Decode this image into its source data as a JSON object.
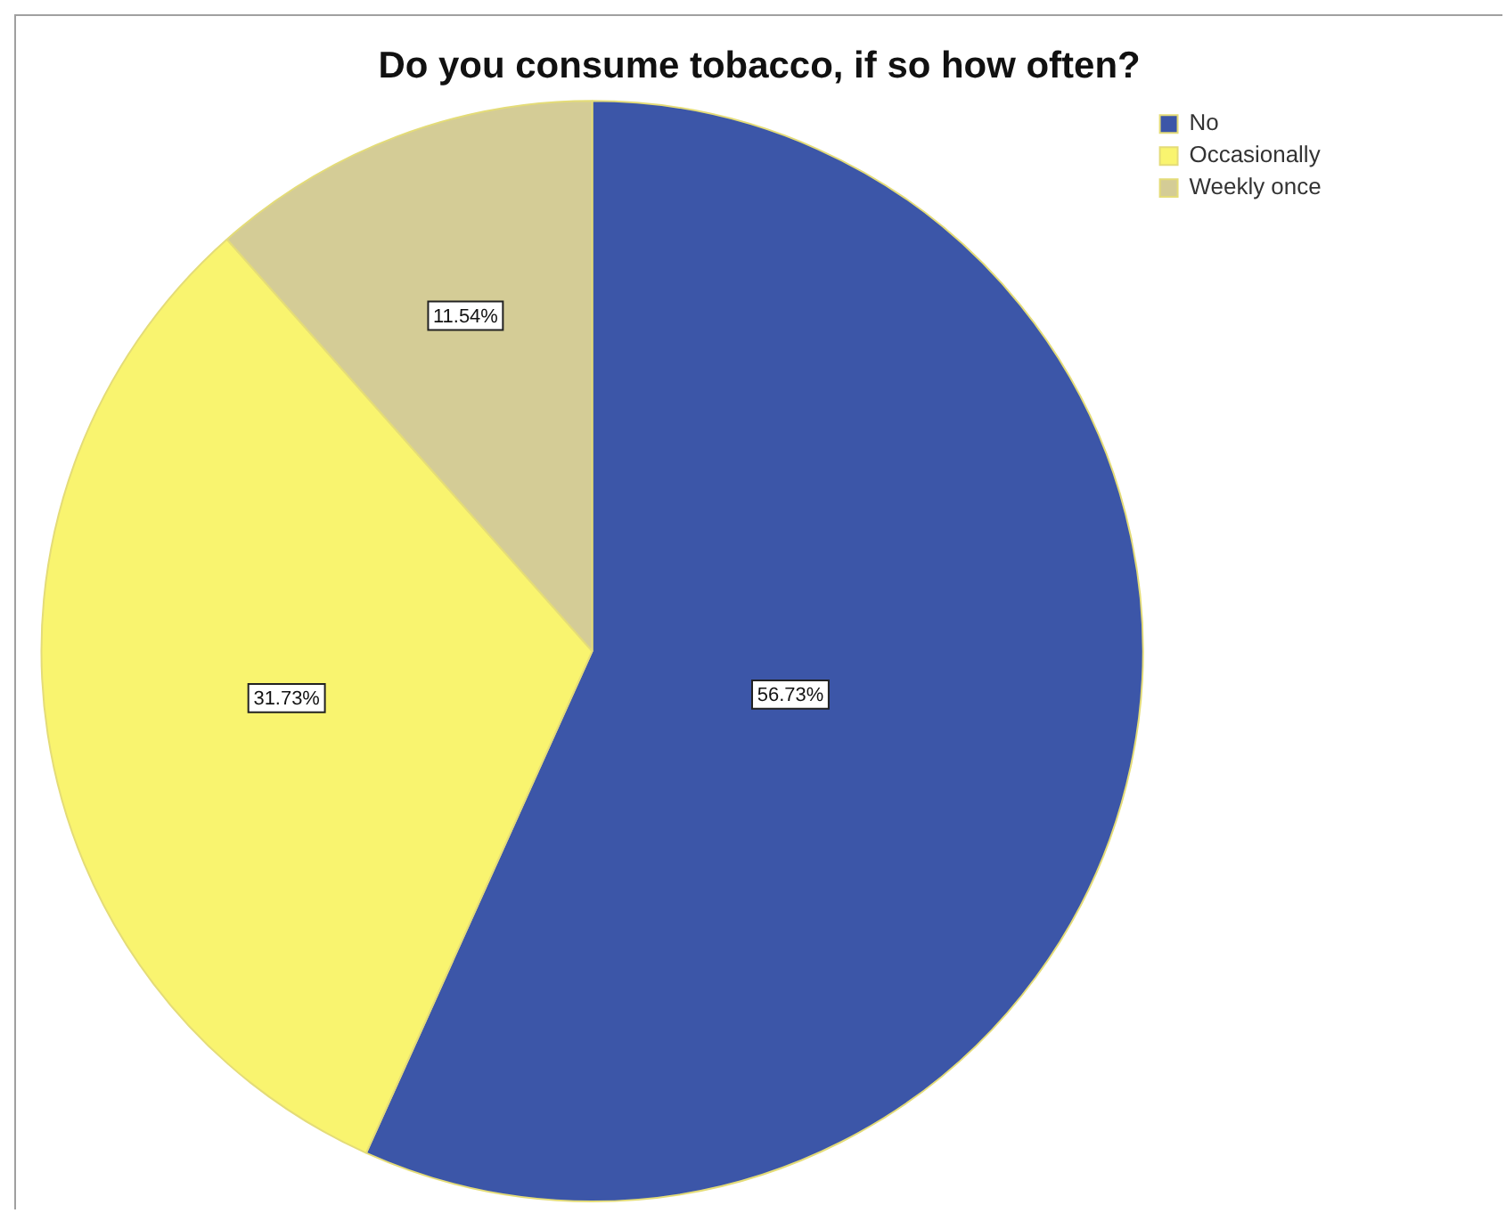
{
  "chart_data": {
    "type": "pie",
    "title": "Do you consume tobacco, if so how often?",
    "categories": [
      "No",
      "Occasionally",
      "Weekly once"
    ],
    "values": [
      56.73,
      31.73,
      11.54
    ],
    "colors": [
      "#3c56a8",
      "#f9f46f",
      "#d4cc96"
    ],
    "value_labels": [
      "56.73%",
      "31.73%",
      "11.54%"
    ],
    "legend": "top right"
  }
}
